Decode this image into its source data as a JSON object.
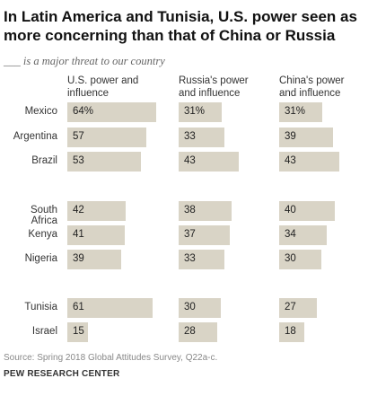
{
  "title": "In Latin America and Tunisia, U.S. power seen as more concerning than that of China or Russia",
  "subtitle": "___ is a major threat to our country",
  "chart_data": {
    "type": "bar",
    "title": "In Latin America and Tunisia, U.S. power seen as more concerning than that of China or Russia",
    "subtitle": "___ is a major threat to our country",
    "categories": [
      "Mexico",
      "Argentina",
      "Brazil",
      "South Africa",
      "Kenya",
      "Nigeria",
      "Tunisia",
      "Israel"
    ],
    "value_labels": [
      "64%",
      "57",
      "53",
      "42",
      "41",
      "39",
      "61",
      "15"
    ],
    "series": [
      {
        "name": "U.S. power and influence",
        "values": [
          64,
          57,
          53,
          42,
          41,
          39,
          61,
          15
        ],
        "labels": [
          "64%",
          "57",
          "53",
          "42",
          "41",
          "39",
          "61",
          "15"
        ]
      },
      {
        "name": "Russia's power and influence",
        "values": [
          31,
          33,
          43,
          38,
          37,
          33,
          30,
          28
        ],
        "labels": [
          "31%",
          "33",
          "43",
          "38",
          "37",
          "33",
          "30",
          "28"
        ]
      },
      {
        "name": "China's power and influence",
        "values": [
          31,
          39,
          43,
          40,
          34,
          30,
          27,
          18
        ],
        "labels": [
          "31%",
          "39",
          "43",
          "40",
          "34",
          "30",
          "27",
          "18"
        ]
      }
    ],
    "xlim": [
      0,
      100
    ]
  },
  "headers": [
    {
      "line1": "U.S. power and",
      "line2": "influence"
    },
    {
      "line1": "Russia's power",
      "line2": "and influence"
    },
    {
      "line1": "China's power",
      "line2": "and influence"
    }
  ],
  "source": "Source: Spring 2018 Global Attitudes Survey, Q22a-c.",
  "org": "PEW RESEARCH CENTER",
  "colors": {
    "bar": "#d9d4c6",
    "text": "#222222",
    "muted": "#888888"
  }
}
